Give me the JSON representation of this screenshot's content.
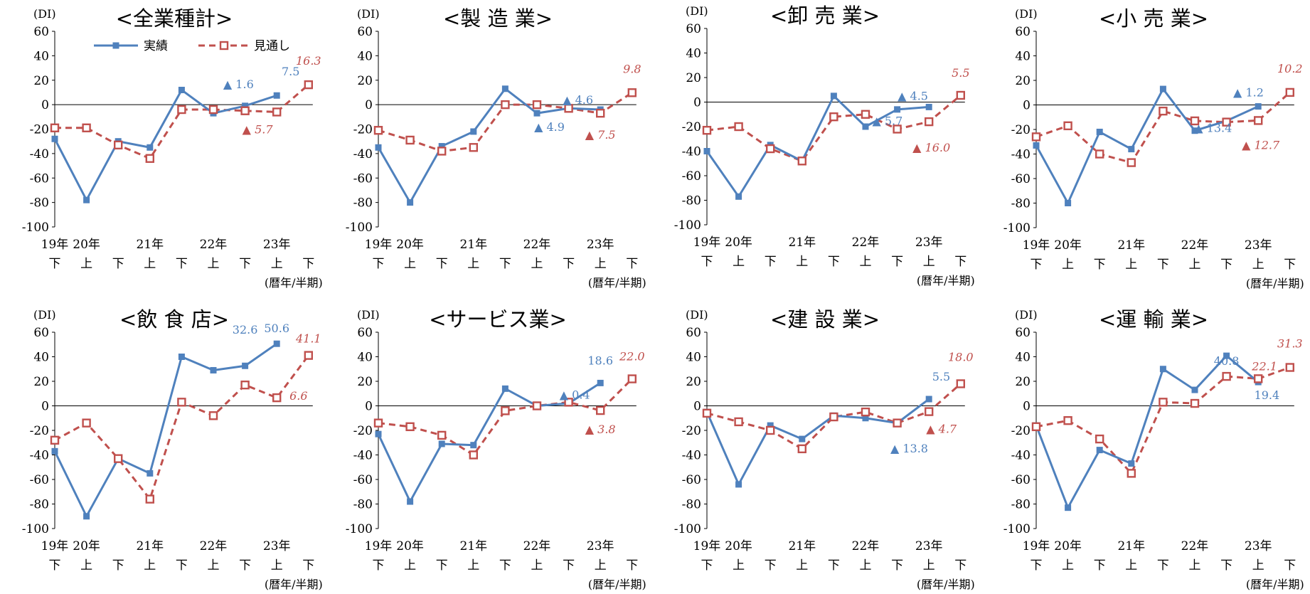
{
  "legend": {
    "actual": "実績",
    "forecast": "見通し"
  },
  "colors": {
    "actual": "#4f81bd",
    "forecast": "#c0504d"
  },
  "axis": {
    "unit": "(DI)",
    "x_note": "(暦年/半期)",
    "year_labels": [
      "19年",
      "20年",
      "21年",
      "22年",
      "23年"
    ],
    "half_labels": [
      "下",
      "上",
      "下",
      "上",
      "下",
      "上",
      "下",
      "上",
      "下"
    ],
    "y_ticks": [
      "60",
      "40",
      "20",
      "0",
      "-20",
      "-40",
      "-60",
      "-80",
      "-100"
    ]
  },
  "chart_data": [
    {
      "type": "line",
      "title": "<全業種計>",
      "ylabel": "(DI)",
      "xlabel": "(暦年/半期)",
      "ylim": [
        -100,
        60
      ],
      "categories": [
        "19年下",
        "20年上",
        "20年下",
        "21年上",
        "21年下",
        "22年上",
        "22年下",
        "23年上",
        "23年下"
      ],
      "series": [
        {
          "name": "実績",
          "values": [
            -28,
            -78,
            -30,
            -35,
            12,
            -7,
            -1,
            7.5,
            null
          ]
        },
        {
          "name": "見通し",
          "values": [
            -19,
            -19,
            -33,
            -44,
            -4,
            -4,
            -5,
            -6,
            16.3
          ]
        }
      ],
      "annotations": [
        {
          "text": "7.5",
          "series": "実績"
        },
        {
          "text": "▲ 1.6",
          "series": "実績"
        },
        {
          "text": "16.3",
          "series": "見通し"
        },
        {
          "text": "▲ 5.7",
          "series": "見通し"
        }
      ]
    },
    {
      "type": "line",
      "title": "<製 造 業>",
      "ylabel": "(DI)",
      "xlabel": "(暦年/半期)",
      "ylim": [
        -100,
        60
      ],
      "categories": [
        "19年下",
        "20年上",
        "20年下",
        "21年上",
        "21年下",
        "22年上",
        "22年下",
        "23年上",
        "23年下"
      ],
      "series": [
        {
          "name": "実績",
          "values": [
            -35,
            -80,
            -34,
            -22,
            13,
            -7,
            -3,
            -4,
            null
          ]
        },
        {
          "name": "見通し",
          "values": [
            -21,
            -29,
            -38,
            -35,
            0,
            0,
            -3,
            -7,
            9.8
          ]
        }
      ],
      "annotations": [
        {
          "text": "▲ 4.6",
          "series": "実績"
        },
        {
          "text": "▲ 4.9",
          "series": "実績"
        },
        {
          "text": "9.8",
          "series": "見通し"
        },
        {
          "text": "▲ 7.5",
          "series": "見通し"
        }
      ]
    },
    {
      "type": "line",
      "title": "<卸 売 業>",
      "ylabel": "(DI)",
      "xlabel": "(暦年/半期)",
      "ylim": [
        -100,
        60
      ],
      "categories": [
        "19年下",
        "20年上",
        "20年下",
        "21年上",
        "21年下",
        "22年上",
        "22年下",
        "23年上",
        "23年下"
      ],
      "series": [
        {
          "name": "実績",
          "values": [
            -40,
            -77,
            -35,
            -48,
            5,
            -20,
            -6,
            -4,
            null
          ]
        },
        {
          "name": "見通し",
          "values": [
            -23,
            -20,
            -38,
            -48,
            -12,
            -10,
            -22,
            -16,
            5.5
          ]
        }
      ],
      "annotations": [
        {
          "text": "▲ 4.5",
          "series": "実績"
        },
        {
          "text": "▲ 5.7",
          "series": "実績"
        },
        {
          "text": "5.5",
          "series": "見通し"
        },
        {
          "text": "▲ 16.0",
          "series": "見通し"
        }
      ]
    },
    {
      "type": "line",
      "title": "<小 売 業>",
      "ylabel": "(DI)",
      "xlabel": "(暦年/半期)",
      "ylim": [
        -100,
        60
      ],
      "categories": [
        "19年下",
        "20年上",
        "20年下",
        "21年上",
        "21年下",
        "22年上",
        "22年下",
        "23年上",
        "23年下"
      ],
      "series": [
        {
          "name": "実績",
          "values": [
            -33,
            -80,
            -22,
            -36,
            13,
            -21,
            -13,
            -1.2,
            null
          ]
        },
        {
          "name": "見通し",
          "values": [
            -26,
            -17,
            -40,
            -47,
            -5,
            -13,
            -14,
            -12.7,
            10.2
          ]
        }
      ],
      "annotations": [
        {
          "text": "▲ 1.2",
          "series": "実績"
        },
        {
          "text": "▲ 13.4",
          "series": "実績"
        },
        {
          "text": "10.2",
          "series": "見通し"
        },
        {
          "text": "▲ 12.7",
          "series": "見通し"
        }
      ]
    },
    {
      "type": "line",
      "title": "<飲 食 店>",
      "ylabel": "(DI)",
      "xlabel": "(暦年/半期)",
      "ylim": [
        -100,
        60
      ],
      "categories": [
        "19年下",
        "20年上",
        "20年下",
        "21年上",
        "21年下",
        "22年上",
        "22年下",
        "23年上",
        "23年下"
      ],
      "series": [
        {
          "name": "実績",
          "values": [
            -37,
            -90,
            -43,
            -55,
            40,
            29,
            32.6,
            50.6,
            null
          ]
        },
        {
          "name": "見通し",
          "values": [
            -28,
            -14,
            -43,
            -76,
            3,
            -8,
            17,
            6.6,
            41.1
          ]
        }
      ],
      "annotations": [
        {
          "text": "50.6",
          "series": "実績"
        },
        {
          "text": "32.6",
          "series": "実績"
        },
        {
          "text": "41.1",
          "series": "見通し"
        },
        {
          "text": "6.6",
          "series": "見通し"
        }
      ]
    },
    {
      "type": "line",
      "title": "<サービス業>",
      "ylabel": "(DI)",
      "xlabel": "(暦年/半期)",
      "ylim": [
        -100,
        60
      ],
      "categories": [
        "19年下",
        "20年上",
        "20年下",
        "21年上",
        "21年下",
        "22年上",
        "22年下",
        "23年上",
        "23年下"
      ],
      "series": [
        {
          "name": "実績",
          "values": [
            -23,
            -78,
            -31,
            -32,
            14,
            0,
            2,
            18.6,
            null
          ]
        },
        {
          "name": "見通し",
          "values": [
            -14,
            -17,
            -24,
            -40,
            -4,
            0,
            3,
            -3.8,
            22.0
          ]
        }
      ],
      "annotations": [
        {
          "text": "18.6",
          "series": "実績"
        },
        {
          "text": "▲ 0.4",
          "series": "実績"
        },
        {
          "text": "22.0",
          "series": "見通し"
        },
        {
          "text": "▲ 3.8",
          "series": "見通し"
        }
      ]
    },
    {
      "type": "line",
      "title": "<建 設 業>",
      "ylabel": "(DI)",
      "xlabel": "(暦年/半期)",
      "ylim": [
        -100,
        60
      ],
      "categories": [
        "19年下",
        "20年上",
        "20年下",
        "21年上",
        "21年下",
        "22年上",
        "22年下",
        "23年上",
        "23年下"
      ],
      "series": [
        {
          "name": "実績",
          "values": [
            -5,
            -64,
            -16,
            -27,
            -8,
            -10,
            -14,
            5.5,
            null
          ]
        },
        {
          "name": "見通し",
          "values": [
            -6,
            -13,
            -20,
            -35,
            -9,
            -5,
            -14,
            -4.7,
            18.0
          ]
        }
      ],
      "annotations": [
        {
          "text": "5.5",
          "series": "実績"
        },
        {
          "text": "▲ 13.8",
          "series": "実績"
        },
        {
          "text": "18.0",
          "series": "見通し"
        },
        {
          "text": "▲ 4.7",
          "series": "見通し"
        }
      ]
    },
    {
      "type": "line",
      "title": "<運 輸 業>",
      "ylabel": "(DI)",
      "xlabel": "(暦年/半期)",
      "ylim": [
        -100,
        60
      ],
      "categories": [
        "19年下",
        "20年上",
        "20年下",
        "21年上",
        "21年下",
        "22年上",
        "22年下",
        "23年上",
        "23年下"
      ],
      "series": [
        {
          "name": "実績",
          "values": [
            -16,
            -83,
            -36,
            -47,
            30,
            13,
            40.8,
            19.4,
            null
          ]
        },
        {
          "name": "見通し",
          "values": [
            -17,
            -12,
            -27,
            -55,
            3,
            2,
            24,
            22.1,
            31.3
          ]
        }
      ],
      "annotations": [
        {
          "text": "40.8",
          "series": "実績"
        },
        {
          "text": "19.4",
          "series": "実績"
        },
        {
          "text": "31.3",
          "series": "見通し"
        },
        {
          "text": "22.1",
          "series": "見通し"
        }
      ]
    }
  ]
}
